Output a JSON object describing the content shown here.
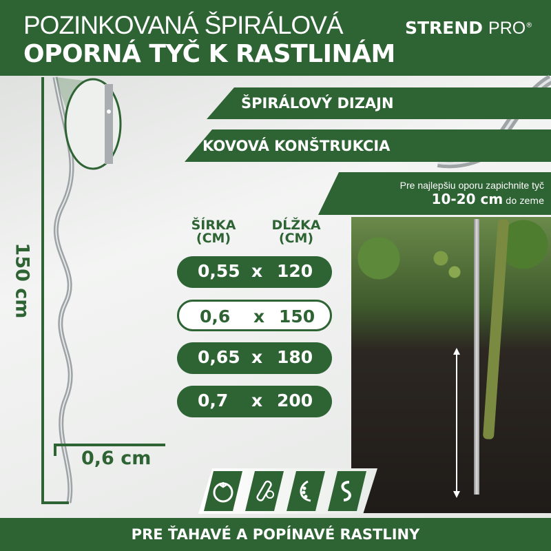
{
  "header": {
    "title_line1": "POZINKOVANÁ ŠPIRÁLOVÁ",
    "title_line2": "OPORNÁ TYČ K RASTLINÁM",
    "brand_bold": "STREND",
    "brand_light": "PRO",
    "brand_mark": "®"
  },
  "features": [
    "ŠPIRÁLOVÝ DIZAJN",
    "KOVOVÁ KONŠTRUKCIA"
  ],
  "tip": {
    "line1": "Pre najlepšiu oporu zapichnite tyč",
    "depth": "10-20 cm",
    "suffix": "do zeme"
  },
  "dimensions": {
    "height_label": "150 cm",
    "width_label": "0,6 cm"
  },
  "sizes": {
    "col_width": "ŠÍRKA",
    "col_width_unit": "(CM)",
    "col_length": "DĹŽKA",
    "col_length_unit": "(CM)",
    "separator": "x",
    "rows": [
      {
        "width": "0,55",
        "length": "120",
        "selected": false
      },
      {
        "width": "0,6",
        "length": "150",
        "selected": true
      },
      {
        "width": "0,65",
        "length": "180",
        "selected": false
      },
      {
        "width": "0,7",
        "length": "200",
        "selected": false
      }
    ]
  },
  "plant_icons": [
    "tomato-icon",
    "cucumber-icon",
    "pea-icon",
    "bean-icon"
  ],
  "footer": {
    "text": "PRE ŤAHAVÉ A POPÍNAVÉ RASTLINY"
  },
  "colors": {
    "brand_green": "#2e6334",
    "background": "#eeefee"
  }
}
